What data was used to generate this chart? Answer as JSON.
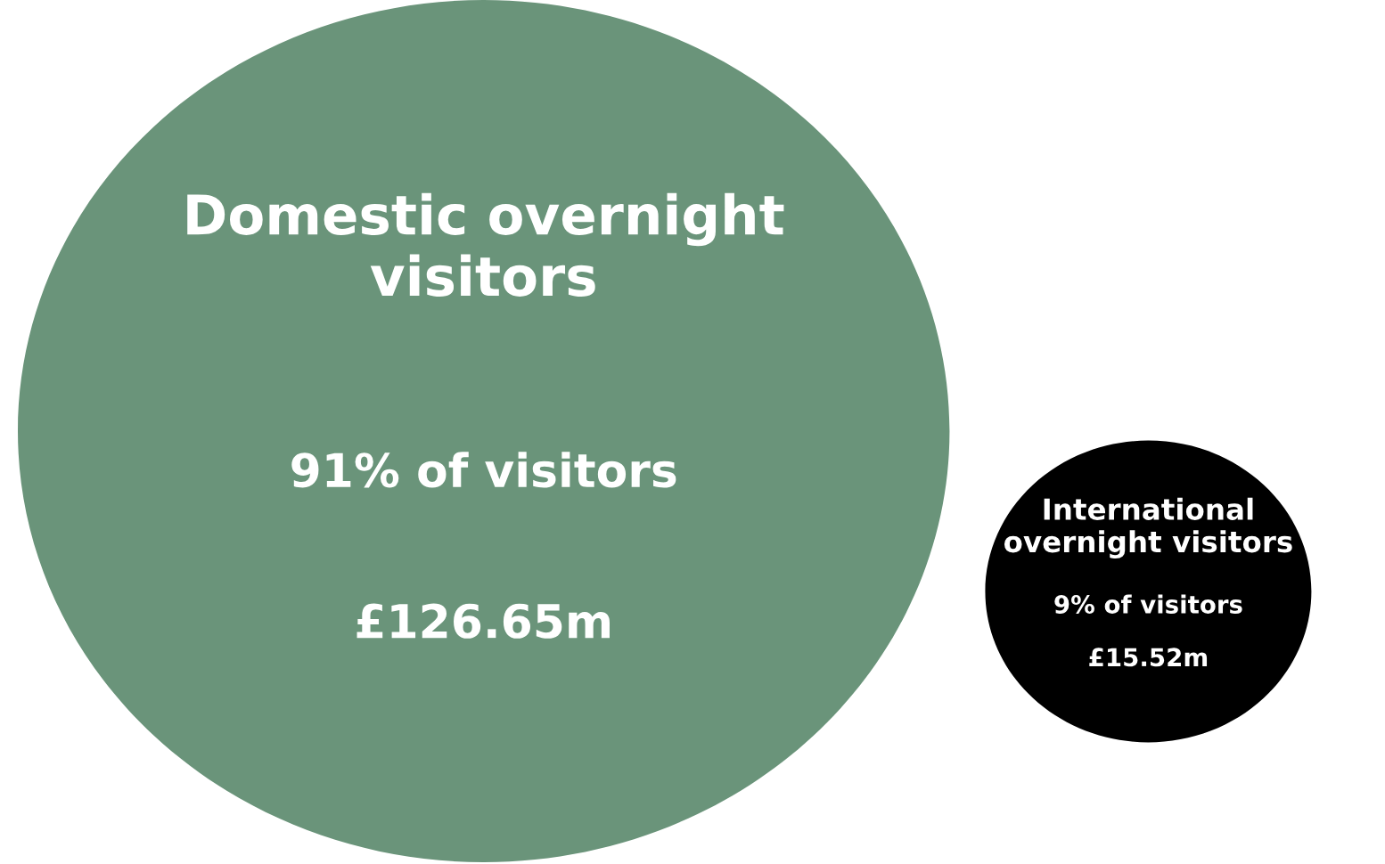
{
  "chart_data": {
    "type": "other",
    "categories": [
      "Domestic overnight\nvisitors",
      "International\novernight visitors"
    ],
    "values": [
      126.65,
      15.52
    ],
    "value_labels": [
      "£126.65m",
      "£15.52m"
    ],
    "annotations": [
      "91% of visitors",
      "9% of visitors"
    ],
    "colors": [
      "#6a947a",
      "#000000"
    ]
  }
}
